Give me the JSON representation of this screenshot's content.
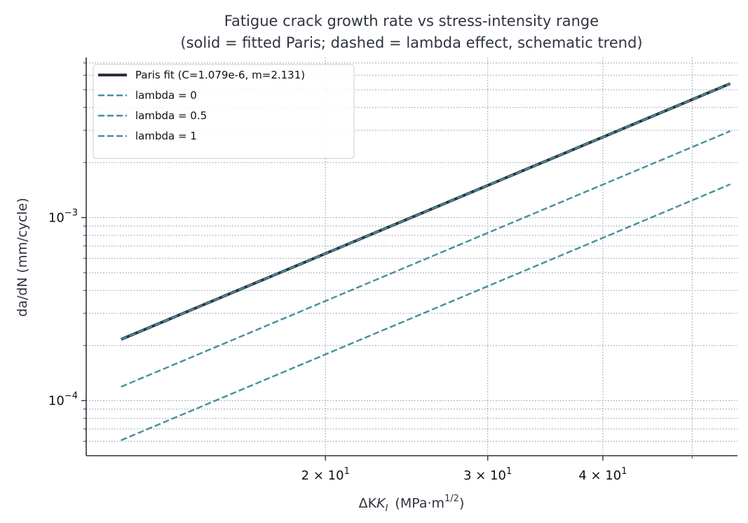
{
  "chart_data": {
    "type": "line",
    "title_line1": "Fatigue crack growth rate vs stress-intensity range",
    "title_line2": "(solid = fitted Paris; dashed = lambda effect, schematic trend)",
    "xlabel_prefix": "ΔK",
    "xlabel_sub": "I",
    "xlabel_units": "(MPa·m",
    "xlabel_sup": "1/2",
    "xlabel_close": ")",
    "ylabel": "da/dN  (mm/cycle)",
    "x_scale": "log",
    "y_scale": "log",
    "xlim": [
      11.0,
      56.0
    ],
    "ylim": [
      5e-05,
      0.0075
    ],
    "grid": true,
    "legend_position": "upper-left",
    "x_ticks_major": [
      {
        "value": 20,
        "mantissa": "2",
        "base": "10",
        "exp": "1"
      },
      {
        "value": 30,
        "mantissa": "3",
        "base": "10",
        "exp": "1"
      },
      {
        "value": 40,
        "mantissa": "4",
        "base": "10",
        "exp": "1"
      }
    ],
    "x_ticks_minor": [
      50
    ],
    "y_ticks_major": [
      {
        "value": 0.0001,
        "base": "10",
        "exp": "−4"
      },
      {
        "value": 0.001,
        "base": "10",
        "exp": "−3"
      }
    ],
    "y_ticks_minor": [
      6e-05,
      7e-05,
      8e-05,
      9e-05,
      0.0002,
      0.0003,
      0.0004,
      0.0005,
      0.0006,
      0.0007,
      0.0008,
      0.0009,
      0.002,
      0.003,
      0.004,
      0.005,
      0.006,
      0.007
    ],
    "series": [
      {
        "name": "Paris fit (C=1.079e-6, m=2.131)",
        "style": "solid",
        "color": "#2a2e3e",
        "x": [
          12,
          55
        ],
        "y": [
          0.000216,
          0.0054
        ]
      },
      {
        "name": "lambda = 0",
        "style": "dashed",
        "color": "#468f99",
        "x": [
          12,
          55
        ],
        "y": [
          0.000216,
          0.0054
        ]
      },
      {
        "name": "lambda = 0.5",
        "style": "dashed",
        "color": "#468f99",
        "x": [
          12,
          55
        ],
        "y": [
          0.000119,
          0.00297
        ]
      },
      {
        "name": "lambda = 1",
        "style": "dashed",
        "color": "#468f99",
        "x": [
          12,
          55
        ],
        "y": [
          6.07e-05,
          0.00152
        ]
      }
    ]
  }
}
